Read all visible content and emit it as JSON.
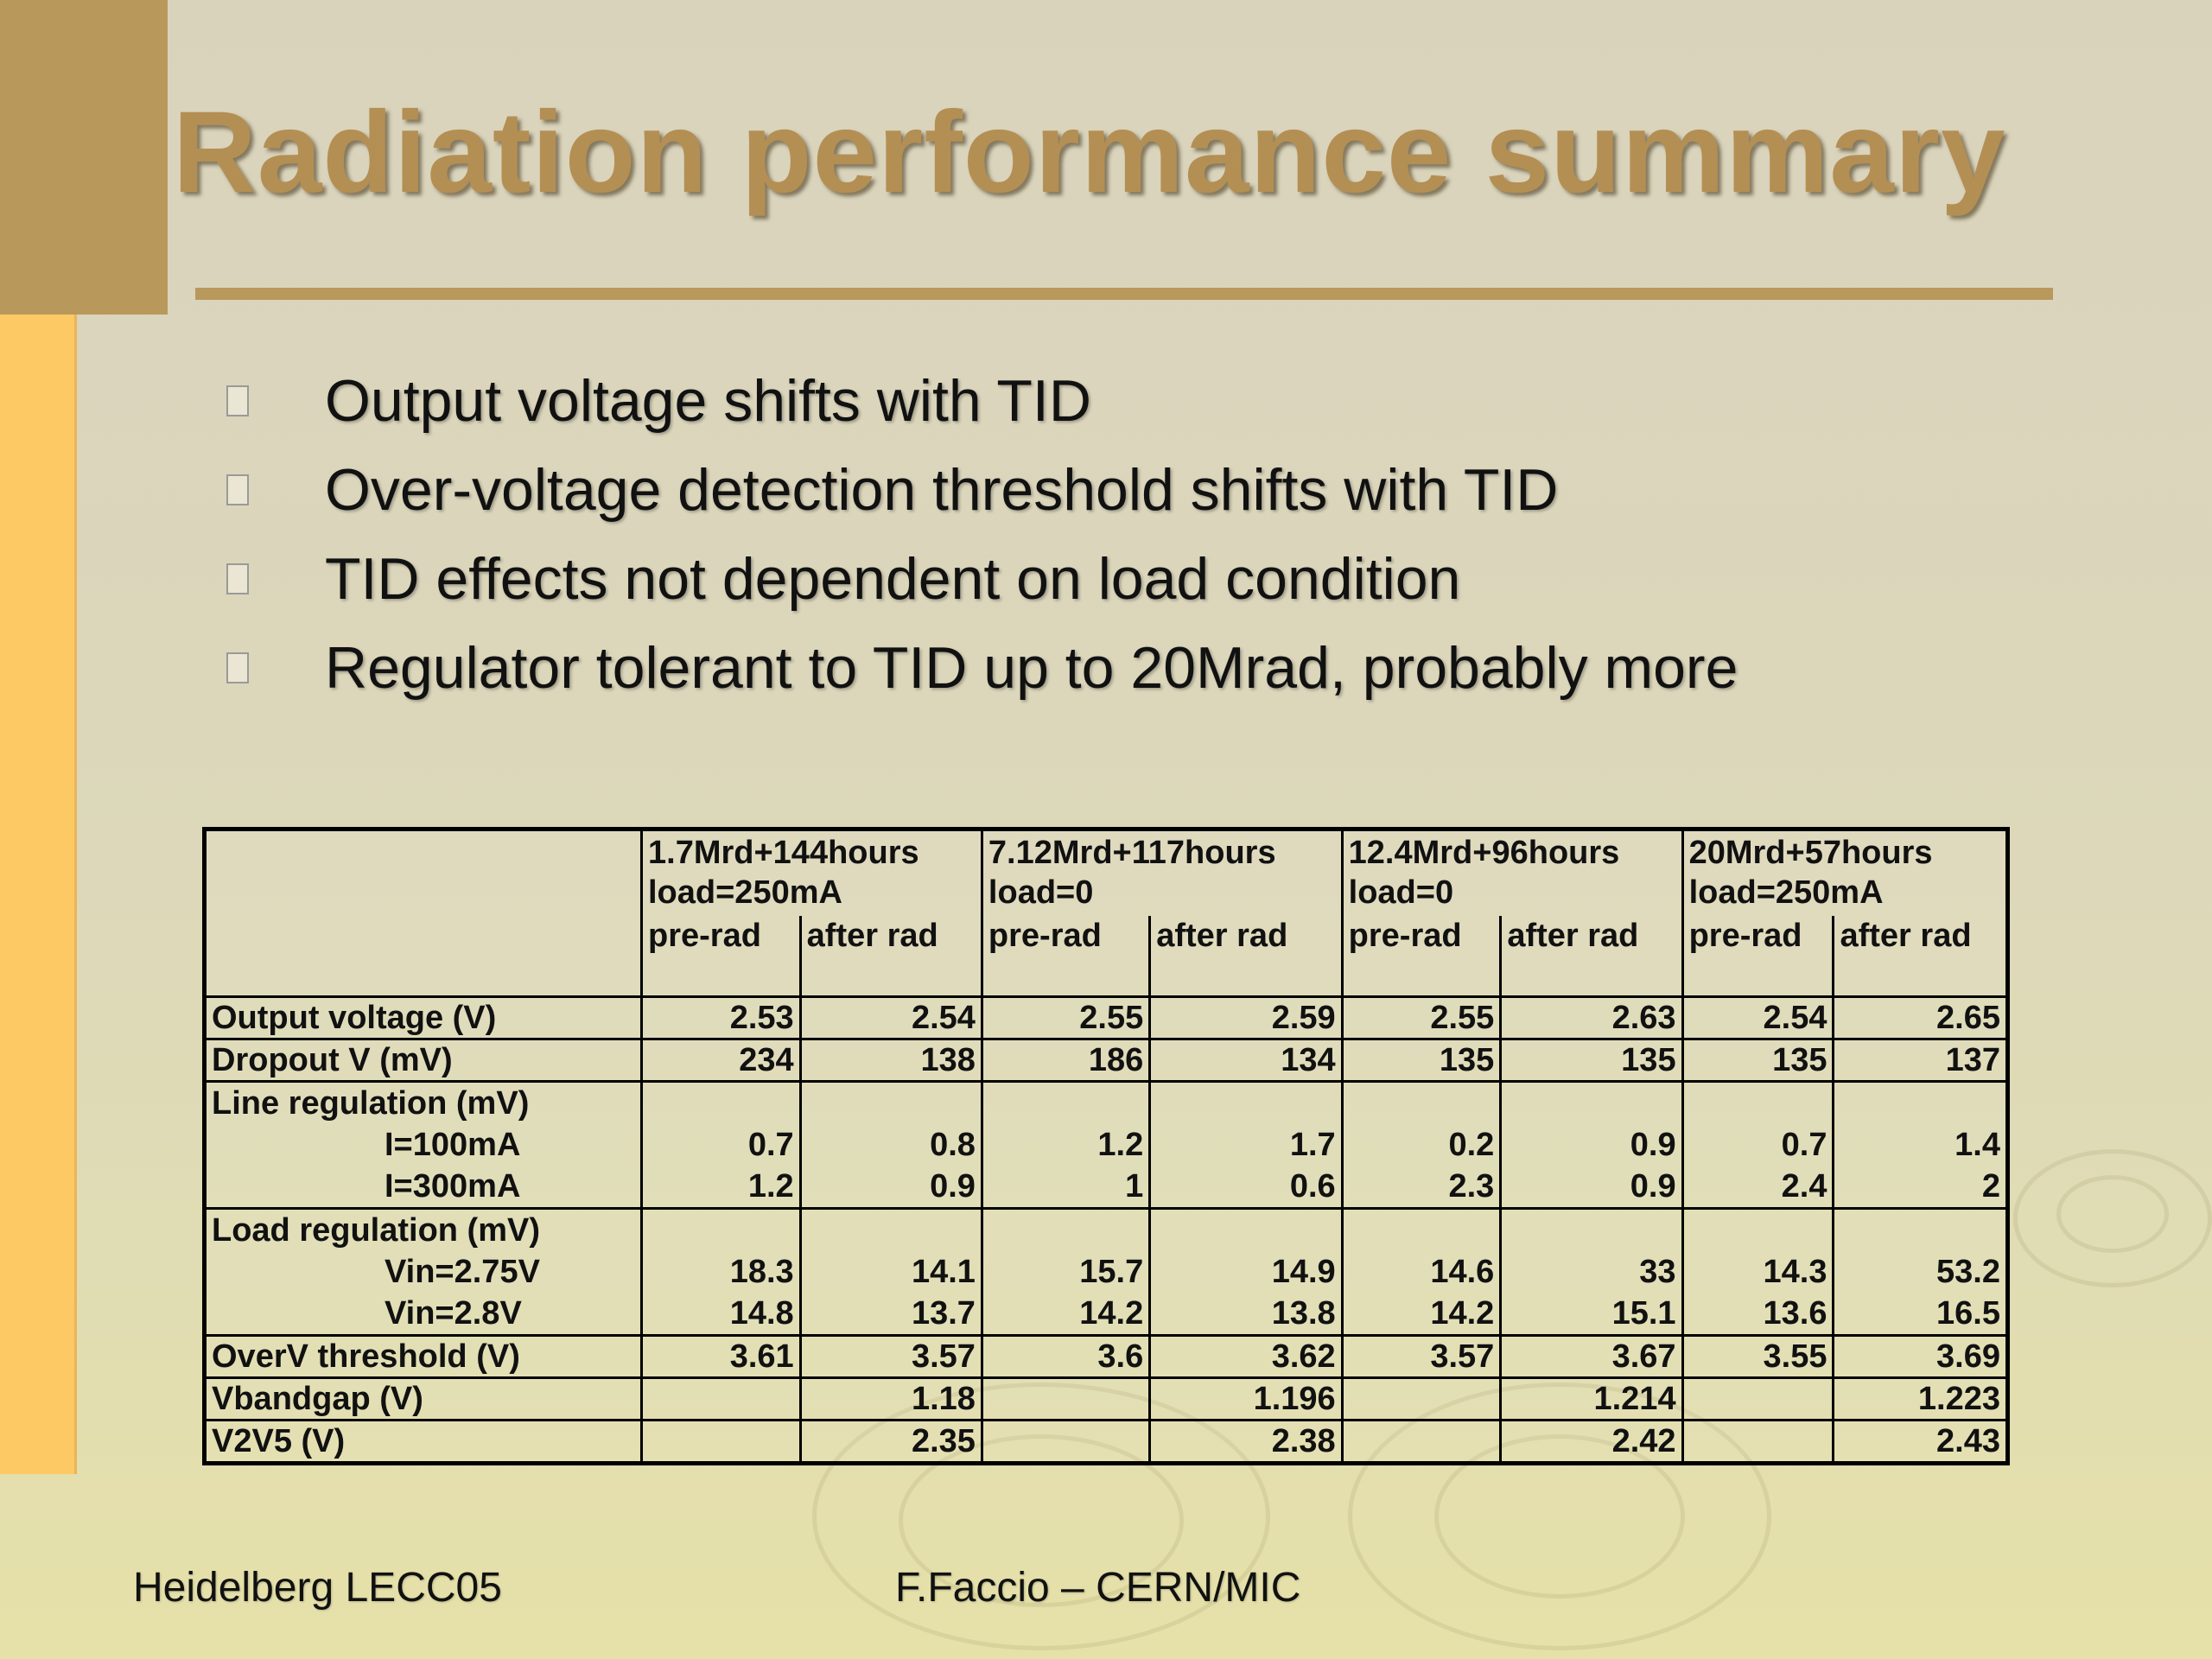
{
  "title": "Radiation performance summary",
  "bullets": [
    "Output voltage shifts with TID",
    "Over-voltage detection threshold shifts with TID",
    "TID effects not dependent on load condition",
    "Regulator tolerant to TID up to 20Mrad, probably more"
  ],
  "table": {
    "groups": [
      {
        "line1": "1.7Mrd+144hours",
        "line2": "load=250mA"
      },
      {
        "line1": "7.12Mrd+117hours",
        "line2": "load=0"
      },
      {
        "line1": "12.4Mrd+96hours",
        "line2": "load=0"
      },
      {
        "line1": "20Mrd+57hours",
        "line2": "load=250mA"
      }
    ],
    "subheaders": [
      "pre-rad",
      "after rad"
    ],
    "rows": {
      "output_voltage": {
        "label": "Output voltage (V)",
        "values": [
          "2.53",
          "2.54",
          "2.55",
          "2.59",
          "2.55",
          "2.63",
          "2.54",
          "2.65"
        ]
      },
      "dropout": {
        "label": "Dropout V (mV)",
        "values": [
          "234",
          "138",
          "186",
          "134",
          "135",
          "135",
          "135",
          "137"
        ]
      },
      "line_regulation": {
        "label": "Line regulation (mV)",
        "sub1": {
          "label": "I=100mA",
          "values": [
            "0.7",
            "0.8",
            "1.2",
            "1.7",
            "0.2",
            "0.9",
            "0.7",
            "1.4"
          ]
        },
        "sub2": {
          "label": "I=300mA",
          "values": [
            "1.2",
            "0.9",
            "1",
            "0.6",
            "2.3",
            "0.9",
            "2.4",
            "2"
          ]
        }
      },
      "load_regulation": {
        "label": "Load regulation (mV)",
        "sub1": {
          "label": "Vin=2.75V",
          "values": [
            "18.3",
            "14.1",
            "15.7",
            "14.9",
            "14.6",
            "33",
            "14.3",
            "53.2"
          ]
        },
        "sub2": {
          "label": "Vin=2.8V",
          "values": [
            "14.8",
            "13.7",
            "14.2",
            "13.8",
            "14.2",
            "15.1",
            "13.6",
            "16.5"
          ]
        }
      },
      "overv_threshold": {
        "label": "OverV threshold (V)",
        "values": [
          "3.61",
          "3.57",
          "3.6",
          "3.62",
          "3.57",
          "3.67",
          "3.55",
          "3.69"
        ]
      },
      "vbandgap": {
        "label": "Vbandgap (V)",
        "values": [
          "",
          "1.18",
          "",
          "1.196",
          "",
          "1.214",
          "",
          "1.223"
        ]
      },
      "v2v5": {
        "label": "V2V5 (V)",
        "values": [
          "",
          "2.35",
          "",
          "2.38",
          "",
          "2.42",
          "",
          "2.43"
        ]
      }
    }
  },
  "footer": {
    "left": "Heidelberg LECC05",
    "center": "F.Faccio – CERN/MIC"
  }
}
